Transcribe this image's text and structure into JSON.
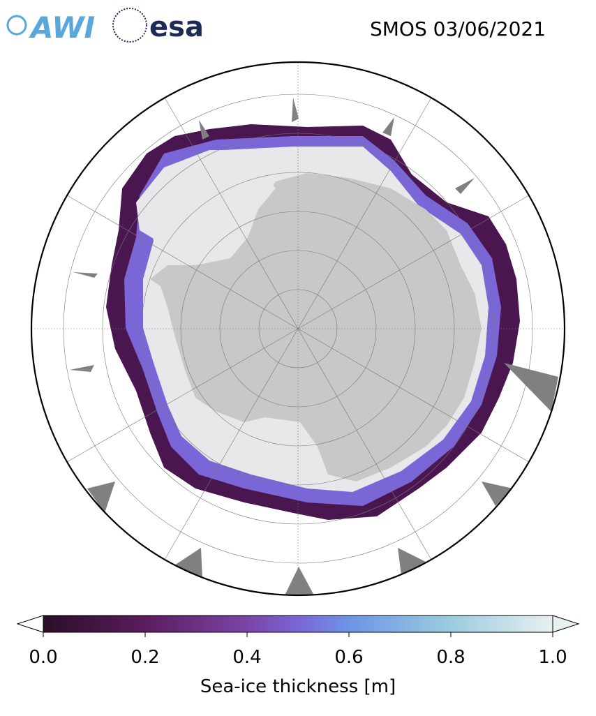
{
  "header": {
    "logos": [
      "AWI",
      "esa"
    ],
    "title": "SMOS 03/06/2021"
  },
  "colorbar": {
    "label": "Sea-ice thickness [m]",
    "lim": [
      0,
      1
    ],
    "ticks": [
      {
        "value": 0,
        "label": "0.0"
      },
      {
        "value": 0.2,
        "label": "0.2"
      },
      {
        "value": 0.4,
        "label": "0.4"
      },
      {
        "value": 0.6,
        "label": "0.6"
      },
      {
        "value": 0.8,
        "label": "0.8"
      },
      {
        "value": 1,
        "label": "1.0"
      }
    ]
  }
}
